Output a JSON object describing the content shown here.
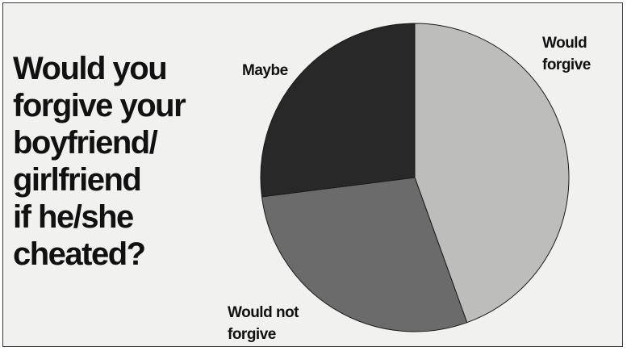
{
  "chart_data": {
    "type": "pie",
    "title": "Would you\nforgive your\nboyfriend/\ngirlfriend\nif he/she\ncheated?",
    "slices": [
      {
        "label": "Would\nforgive",
        "value": 44.5,
        "color": "#bdbdbb"
      },
      {
        "label": "Would not\nforgive",
        "value": 28.5,
        "color": "#6b6b6b"
      },
      {
        "label": "Maybe",
        "value": 27.0,
        "color": "#282828"
      }
    ],
    "legend": "labels placed beside slices",
    "start_angle": "12 o'clock, clockwise"
  }
}
